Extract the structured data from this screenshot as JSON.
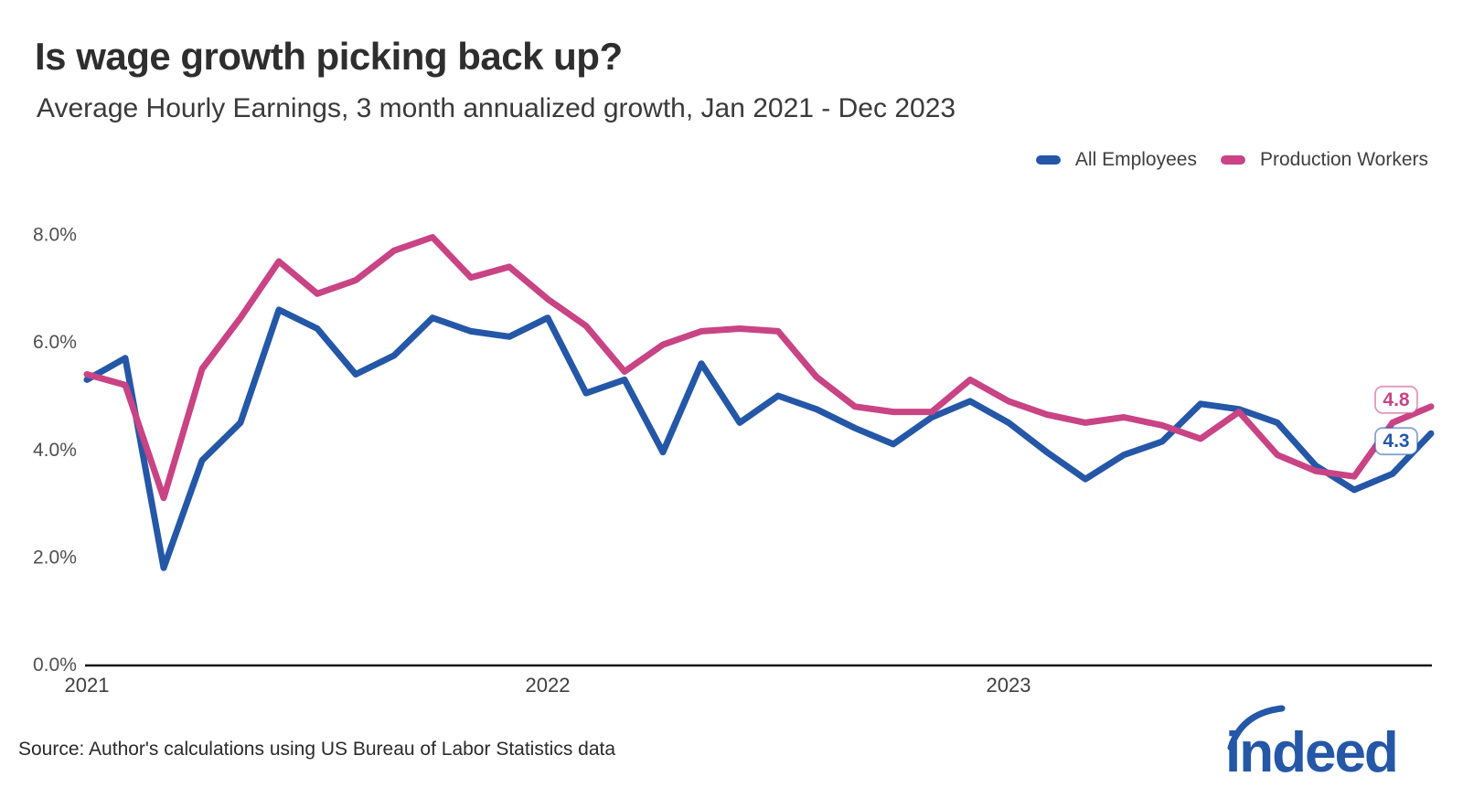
{
  "header": {
    "title": "Is wage growth picking back up?",
    "subtitle": "Average Hourly Earnings, 3 month annualized growth, Jan 2021 - Dec 2023"
  },
  "legend": {
    "items": [
      {
        "label": "All Employees",
        "color": "#2557a7"
      },
      {
        "label": "Production Workers",
        "color": "#c84484"
      }
    ]
  },
  "chart_data": {
    "type": "line",
    "title": "Is wage growth picking back up?",
    "subtitle": "Average Hourly Earnings, 3 month annualized growth, Jan 2021 - Dec 2023",
    "x": [
      "Jan 2021",
      "Feb 2021",
      "Mar 2021",
      "Apr 2021",
      "May 2021",
      "Jun 2021",
      "Jul 2021",
      "Aug 2021",
      "Sep 2021",
      "Oct 2021",
      "Nov 2021",
      "Dec 2021",
      "Jan 2022",
      "Feb 2022",
      "Mar 2022",
      "Apr 2022",
      "May 2022",
      "Jun 2022",
      "Jul 2022",
      "Aug 2022",
      "Sep 2022",
      "Oct 2022",
      "Nov 2022",
      "Dec 2022",
      "Jan 2023",
      "Feb 2023",
      "Mar 2023",
      "Apr 2023",
      "May 2023",
      "Jun 2023",
      "Jul 2023",
      "Aug 2023",
      "Sep 2023",
      "Oct 2023",
      "Nov 2023",
      "Dec 2023"
    ],
    "series": [
      {
        "name": "All Employees",
        "color": "#2557a7",
        "values": [
          5.3,
          5.7,
          1.8,
          3.8,
          4.5,
          6.6,
          6.25,
          5.4,
          5.75,
          6.45,
          6.2,
          6.1,
          6.45,
          5.05,
          5.3,
          3.95,
          5.6,
          4.5,
          5.0,
          4.75,
          4.4,
          4.1,
          4.6,
          4.9,
          4.5,
          3.95,
          3.45,
          3.9,
          4.15,
          4.85,
          4.75,
          4.5,
          3.7,
          3.25,
          3.55,
          4.3
        ]
      },
      {
        "name": "Production Workers",
        "color": "#c84484",
        "values": [
          5.4,
          5.2,
          3.1,
          5.5,
          6.45,
          7.5,
          6.9,
          7.15,
          7.7,
          7.95,
          7.2,
          7.4,
          6.8,
          6.3,
          5.45,
          5.95,
          6.2,
          6.25,
          6.2,
          5.35,
          4.8,
          4.7,
          4.7,
          5.3,
          4.9,
          4.65,
          4.5,
          4.6,
          4.45,
          4.2,
          4.7,
          3.9,
          3.6,
          3.5,
          4.5,
          4.8
        ]
      }
    ],
    "ylim": [
      0,
      8
    ],
    "yticks": [
      "0.0%",
      "2.0%",
      "4.0%",
      "6.0%",
      "8.0%"
    ],
    "xticks": [
      {
        "label": "2021",
        "month_index": 0
      },
      {
        "label": "2022",
        "month_index": 12
      },
      {
        "label": "2023",
        "month_index": 24
      }
    ],
    "grid": false,
    "legend_position": "top-right",
    "end_labels": {
      "all_employees": "4.3",
      "production_workers": "4.8"
    }
  },
  "footer": {
    "source": "Source: Author's calculations using US Bureau of Labor Statistics data",
    "logo_text": "indeed",
    "logo_color": "#2557a7"
  }
}
